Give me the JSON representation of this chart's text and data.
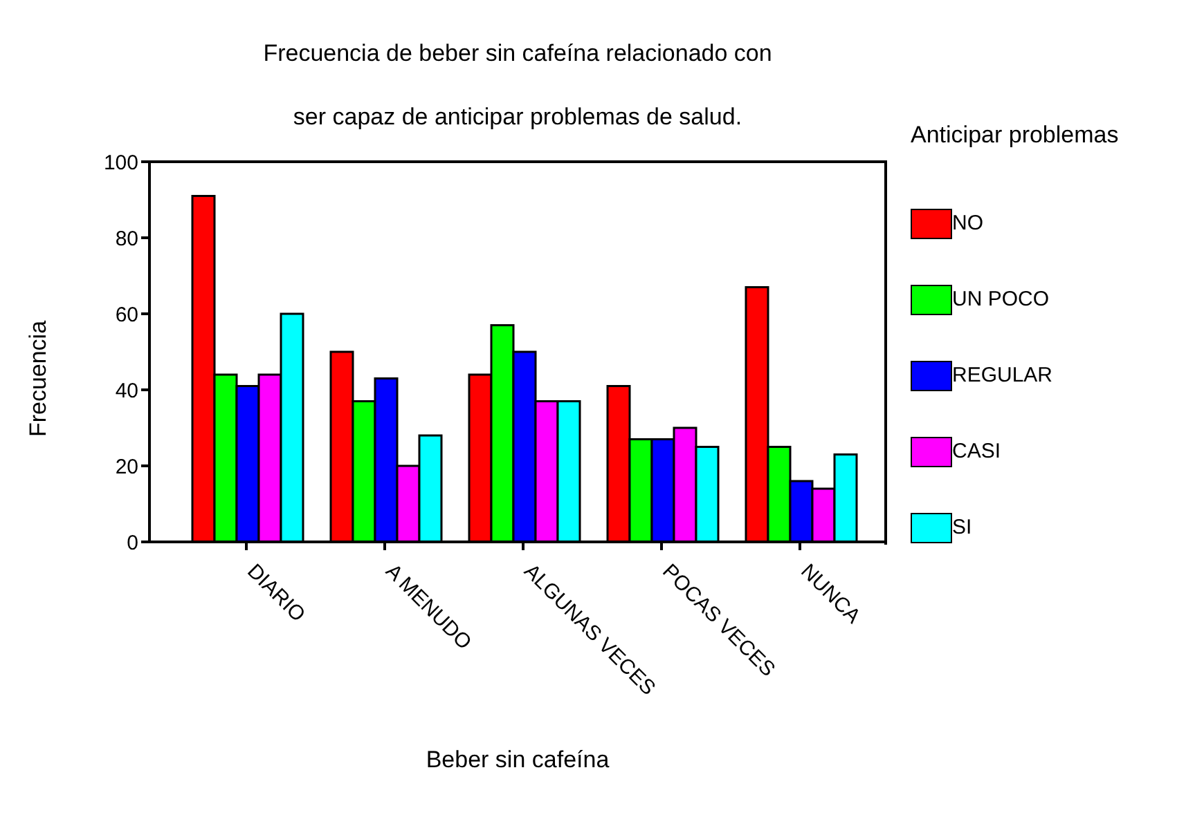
{
  "chart_data": {
    "type": "bar",
    "title": "Frecuencia de beber sin cafeína relacionado con\nser capaz de anticipar problemas de salud.",
    "xlabel": "Beber sin cafeína",
    "ylabel": "Frecuencia",
    "legend_title": "Anticipar problemas",
    "categories": [
      "DIARIO",
      "A MENUDO",
      "ALGUNAS VECES",
      "POCAS VECES",
      "NUNCA"
    ],
    "series": [
      {
        "name": "NO",
        "color": "#ff0000",
        "values": [
          91,
          50,
          44,
          41,
          67
        ]
      },
      {
        "name": "UN POCO",
        "color": "#00ff00",
        "values": [
          44,
          37,
          57,
          27,
          25
        ]
      },
      {
        "name": "REGULAR",
        "color": "#0000ff",
        "values": [
          41,
          43,
          50,
          27,
          16
        ]
      },
      {
        "name": "CASI",
        "color": "#ff00ff",
        "values": [
          44,
          20,
          37,
          30,
          14
        ]
      },
      {
        "name": "SI",
        "color": "#00ffff",
        "values": [
          60,
          28,
          37,
          25,
          23
        ]
      }
    ],
    "ylim": [
      0,
      100
    ],
    "yticks": [
      0,
      20,
      40,
      60,
      80,
      100
    ],
    "grid": false,
    "legend": "right"
  }
}
